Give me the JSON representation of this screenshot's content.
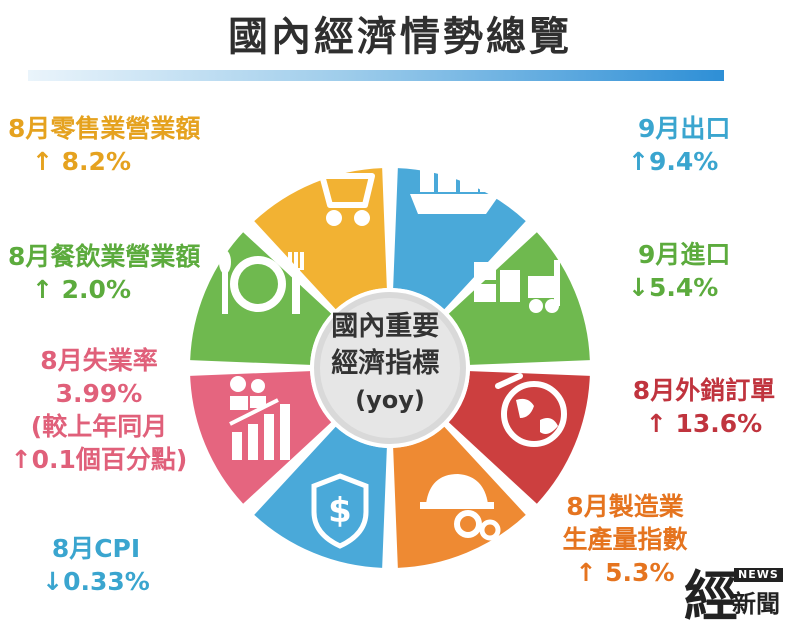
{
  "title": "國內經濟情勢總覽",
  "center": {
    "line1": "國內重要",
    "line2": "經濟指標",
    "line3": "(yoy)"
  },
  "indicators": {
    "retail": {
      "name": "8月零售業營業額",
      "value": "↑ 8.2%",
      "color": "#e5a21f"
    },
    "restaurant": {
      "name": "8月餐飲業營業額",
      "value": "↑ 2.0%",
      "color": "#5cab3d"
    },
    "unemployment": {
      "line1": "8月失業率",
      "line2": "3.99%",
      "line3": "(較上年同月",
      "line4": "↑0.1個百分點)",
      "color": "#e0607a"
    },
    "cpi": {
      "name": "8月CPI",
      "value": "↓0.33%",
      "color": "#3aa5cf"
    },
    "export": {
      "name": "9月出口",
      "value": "↑9.4%",
      "color": "#3aa5cf"
    },
    "import": {
      "name": "9月進口",
      "value": "↓5.4%",
      "color": "#5cab3d"
    },
    "orders": {
      "name": "8月外銷訂單",
      "value": "↑ 13.6%",
      "color": "#c0343e"
    },
    "manufacturing": {
      "line1": "8月製造業",
      "line2": "生產量指數",
      "line3": "↑ 5.3%",
      "color": "#e5741f"
    }
  },
  "segment_colors": {
    "retail": "#f2b233",
    "export": "#4aa9d9",
    "import": "#6fb94f",
    "orders": "#cc3f3f",
    "manufacturing": "#ee8a33",
    "cpi": "#4aa9d9",
    "unemployment": "#e5657f",
    "restaurant": "#6fb94f",
    "hub": "#d9d9d9"
  },
  "icons": {
    "retail": "shopping-cart-icon",
    "export": "cargo-ship-icon",
    "import": "forklift-icon",
    "orders": "globe-icon",
    "manufacturing": "helmet-gears-icon",
    "cpi": "dollar-shield-icon",
    "unemployment": "people-chart-icon",
    "restaurant": "plate-cutlery-icon"
  },
  "logo": {
    "char": "經",
    "badge": "NEWS",
    "sub": "新聞"
  }
}
